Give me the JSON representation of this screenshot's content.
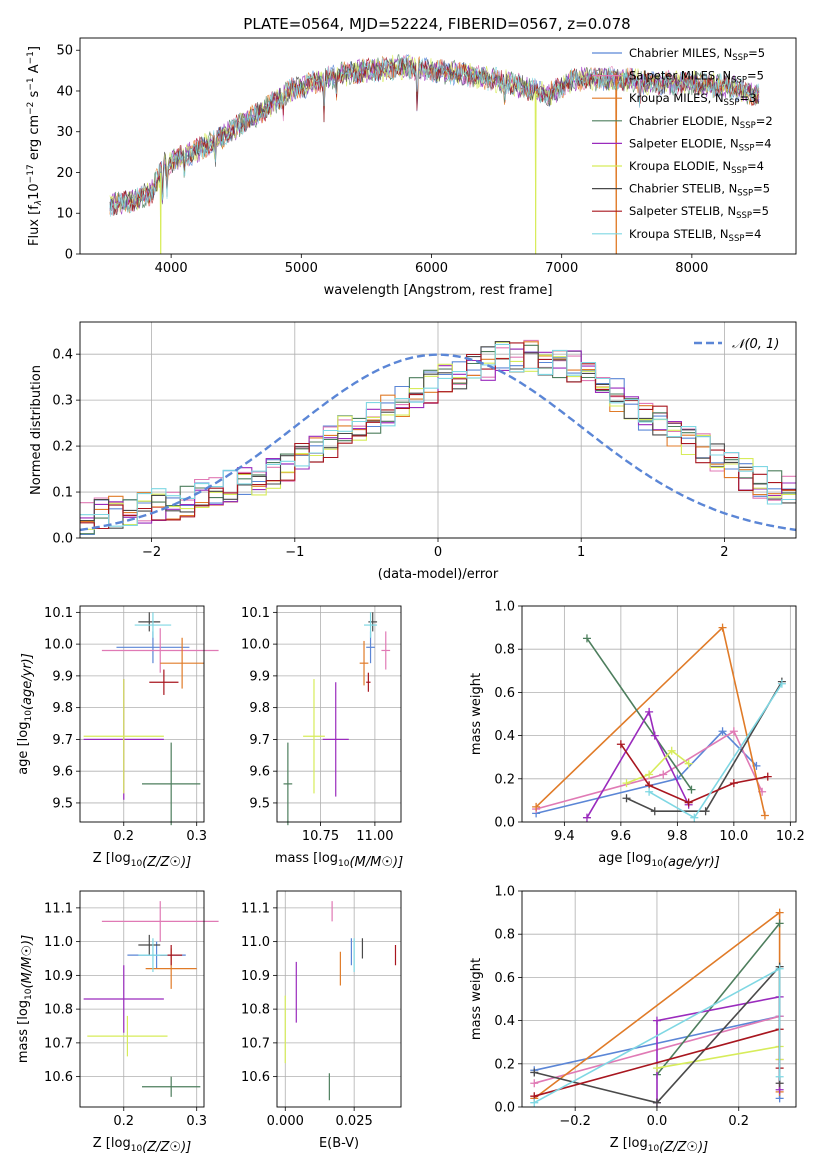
{
  "title": "PLATE=0564, MJD=52224, FIBERID=0567, z=0.078",
  "colors": {
    "chabrier_miles": "#5b86d6",
    "salpeter_miles": "#e07ab5",
    "kroupa_miles": "#e07b28",
    "chabrier_elodie": "#4d7e5d",
    "salpeter_elodie": "#9a2bbd",
    "kroupa_elodie": "#d7ec5a",
    "chabrier_stelib": "#4a4a4a",
    "salpeter_stelib": "#a8161f",
    "kroupa_stelib": "#7fd7e3",
    "normal": "#5b86d6",
    "grid": "#b0b0b0"
  },
  "chart_data": [
    {
      "id": "spectrum",
      "type": "line",
      "xlabel": "wavelength [Angstrom, rest frame]",
      "ylabel_parts": [
        "Flux [f",
        "λ",
        "10",
        "−17",
        " erg cm",
        "−2",
        " s",
        "−1",
        " A",
        "−1",
        "]"
      ],
      "xlim": [
        3300,
        8800
      ],
      "ylim": [
        0,
        53
      ],
      "xticks": [
        4000,
        5000,
        6000,
        7000,
        8000
      ],
      "yticks": [
        0,
        10,
        20,
        30,
        40,
        50
      ],
      "grid": false,
      "legend_position": "top-right",
      "continuum": [
        [
          3530,
          12
        ],
        [
          3700,
          13
        ],
        [
          3850,
          15
        ],
        [
          3950,
          22
        ],
        [
          4100,
          24
        ],
        [
          4300,
          27
        ],
        [
          4500,
          31
        ],
        [
          4700,
          35
        ],
        [
          4900,
          40
        ],
        [
          5100,
          42
        ],
        [
          5300,
          44
        ],
        [
          5500,
          45
        ],
        [
          5800,
          46
        ],
        [
          6000,
          45
        ],
        [
          6300,
          44
        ],
        [
          6600,
          42
        ],
        [
          6900,
          39
        ],
        [
          7100,
          43
        ],
        [
          7400,
          43
        ],
        [
          7700,
          42
        ],
        [
          8000,
          42
        ],
        [
          8300,
          41
        ],
        [
          8500,
          39
        ]
      ],
      "dropouts": [
        {
          "series": "kroupa_elodie",
          "x": 3920,
          "to": 0
        },
        {
          "series": "kroupa_elodie",
          "x": 6800,
          "to": 0
        },
        {
          "series": "kroupa_miles",
          "x": 7420,
          "to": 0
        }
      ],
      "series": [
        {
          "key": "chabrier_miles",
          "label": "Chabrier MILES, N",
          "sub": "SSP",
          "eq": "=5"
        },
        {
          "key": "salpeter_miles",
          "label": "Salpeter MILES, N",
          "sub": "SSP",
          "eq": "=5"
        },
        {
          "key": "kroupa_miles",
          "label": "Kroupa MILES, N",
          "sub": "SSP",
          "eq": "=3"
        },
        {
          "key": "chabrier_elodie",
          "label": "Chabrier ELODIE, N",
          "sub": "SSP",
          "eq": "=2"
        },
        {
          "key": "salpeter_elodie",
          "label": "Salpeter ELODIE, N",
          "sub": "SSP",
          "eq": "=4"
        },
        {
          "key": "kroupa_elodie",
          "label": "Kroupa ELODIE, N",
          "sub": "SSP",
          "eq": "=4"
        },
        {
          "key": "chabrier_stelib",
          "label": "Chabrier STELIB, N",
          "sub": "SSP",
          "eq": "=5"
        },
        {
          "key": "salpeter_stelib",
          "label": "Salpeter STELIB, N",
          "sub": "SSP",
          "eq": "=5"
        },
        {
          "key": "kroupa_stelib",
          "label": "Kroupa STELIB, N",
          "sub": "SSP",
          "eq": "=4"
        }
      ]
    },
    {
      "id": "residuals",
      "type": "line",
      "xlabel": "(data-model)/error",
      "ylabel": "Normed distribution",
      "xlim": [
        -2.5,
        2.5
      ],
      "ylim": [
        0,
        0.47
      ],
      "xticks": [
        -2,
        -1,
        0,
        1,
        2
      ],
      "xticklabels": [
        "−2",
        "−1",
        "0",
        "1",
        "2"
      ],
      "yticks": [
        0.0,
        0.1,
        0.2,
        0.3,
        0.4
      ],
      "yticklabels": [
        "0.0",
        "0.1",
        "0.2",
        "0.3",
        "0.4"
      ],
      "grid": true,
      "legend_position": "top-right",
      "legend_label": "𝒩(0, 1)",
      "bin_width": 0.1,
      "bin_start": -2.5,
      "base_profile": [
        0.045,
        0.05,
        0.055,
        0.06,
        0.065,
        0.07,
        0.075,
        0.08,
        0.09,
        0.1,
        0.11,
        0.12,
        0.13,
        0.14,
        0.16,
        0.17,
        0.19,
        0.21,
        0.23,
        0.25,
        0.26,
        0.28,
        0.3,
        0.32,
        0.33,
        0.35,
        0.36,
        0.37,
        0.38,
        0.39,
        0.39,
        0.4,
        0.39,
        0.38,
        0.37,
        0.35,
        0.33,
        0.31,
        0.29,
        0.27,
        0.25,
        0.23,
        0.21,
        0.19,
        0.17,
        0.15,
        0.14,
        0.12,
        0.11,
        0.1
      ],
      "series": [
        "chabrier_miles",
        "salpeter_miles",
        "kroupa_miles",
        "chabrier_elodie",
        "salpeter_elodie",
        "kroupa_elodie",
        "chabrier_stelib",
        "salpeter_stelib",
        "kroupa_stelib"
      ]
    },
    {
      "id": "age_vs_Z",
      "type": "scatter",
      "xlabel": "Z [log10(Z/Z☉)]",
      "ylabel": "age  [log10(age/yr)]",
      "xlim": [
        0.14,
        0.31
      ],
      "ylim": [
        9.44,
        10.12
      ],
      "xticks": [
        0.2,
        0.3
      ],
      "xticklabels": [
        "0.2",
        "0.3"
      ],
      "yticks": [
        9.5,
        9.6,
        9.7,
        9.8,
        9.9,
        10.0,
        10.1
      ],
      "yticklabels": [
        "9.5",
        "9.6",
        "9.7",
        "9.8",
        "9.9",
        "10.0",
        "10.1"
      ],
      "grid": true,
      "points": [
        {
          "series": "chabrier_miles",
          "x": 0.24,
          "y": 9.99,
          "dx": 0.05,
          "dy": 0.05
        },
        {
          "series": "salpeter_miles",
          "x": 0.25,
          "y": 9.98,
          "dx": 0.08,
          "dy": 0.07
        },
        {
          "series": "kroupa_miles",
          "x": 0.28,
          "y": 9.94,
          "dx": 0.03,
          "dy": 0.08
        },
        {
          "series": "chabrier_elodie",
          "x": 0.265,
          "y": 9.56,
          "dx": 0.04,
          "dy": 0.13
        },
        {
          "series": "salpeter_elodie",
          "x": 0.2,
          "y": 9.7,
          "dx": 0.055,
          "dy": 0.19
        },
        {
          "series": "kroupa_elodie",
          "x": 0.2,
          "y": 9.71,
          "dx": 0.055,
          "dy": 0.18
        },
        {
          "series": "chabrier_stelib",
          "x": 0.235,
          "y": 10.07,
          "dx": 0.015,
          "dy": 0.03
        },
        {
          "series": "salpeter_stelib",
          "x": 0.255,
          "y": 9.88,
          "dx": 0.02,
          "dy": 0.04
        },
        {
          "series": "kroupa_stelib",
          "x": 0.24,
          "y": 10.06,
          "dx": 0.025,
          "dy": 0.04
        }
      ]
    },
    {
      "id": "age_vs_mass",
      "type": "scatter",
      "xlabel": "mass [log10(M/M☉)]",
      "ylabel": "",
      "xlim": [
        10.55,
        11.12
      ],
      "ylim": [
        9.44,
        10.12
      ],
      "xticks": [
        10.75,
        11.0
      ],
      "xticklabels": [
        "10.75",
        "11.00"
      ],
      "yticks": [
        9.5,
        9.6,
        9.7,
        9.8,
        9.9,
        10.0,
        10.1
      ],
      "yticklabels": [
        "9.5",
        "9.6",
        "9.7",
        "9.8",
        "9.9",
        "10.0",
        "10.1"
      ],
      "grid": true,
      "points": [
        {
          "series": "chabrier_miles",
          "x": 10.98,
          "y": 9.99,
          "dx": 0.02,
          "dy": 0.05
        },
        {
          "series": "salpeter_miles",
          "x": 11.05,
          "y": 9.98,
          "dx": 0.02,
          "dy": 0.06
        },
        {
          "series": "kroupa_miles",
          "x": 10.95,
          "y": 9.94,
          "dx": 0.02,
          "dy": 0.07
        },
        {
          "series": "chabrier_elodie",
          "x": 10.6,
          "y": 9.56,
          "dx": 0.02,
          "dy": 0.13
        },
        {
          "series": "salpeter_elodie",
          "x": 10.82,
          "y": 9.7,
          "dx": 0.06,
          "dy": 0.18
        },
        {
          "series": "kroupa_elodie",
          "x": 10.72,
          "y": 9.71,
          "dx": 0.05,
          "dy": 0.18
        },
        {
          "series": "chabrier_stelib",
          "x": 10.99,
          "y": 10.07,
          "dx": 0.02,
          "dy": 0.03
        },
        {
          "series": "salpeter_stelib",
          "x": 10.97,
          "y": 9.88,
          "dx": 0.01,
          "dy": 0.03
        },
        {
          "series": "kroupa_stelib",
          "x": 10.98,
          "y": 10.06,
          "dx": 0.03,
          "dy": 0.04
        }
      ]
    },
    {
      "id": "massweight_vs_age",
      "type": "line",
      "xlabel": "age  [log10(age/yr)]",
      "ylabel": "mass weight",
      "xlim": [
        9.25,
        10.22
      ],
      "ylim": [
        0.0,
        1.0
      ],
      "xticks": [
        9.4,
        9.6,
        9.8,
        10.0,
        10.2
      ],
      "xticklabels": [
        "9.4",
        "9.6",
        "9.8",
        "10.0",
        "10.2"
      ],
      "yticks": [
        0.0,
        0.2,
        0.4,
        0.6,
        0.8,
        1.0
      ],
      "yticklabels": [
        "0.0",
        "0.2",
        "0.4",
        "0.6",
        "0.8",
        "1.0"
      ],
      "grid": true,
      "series": [
        {
          "key": "chabrier_miles",
          "x": [
            9.3,
            9.8,
            9.96,
            10.08
          ],
          "y": [
            0.04,
            0.2,
            0.42,
            0.26
          ]
        },
        {
          "key": "salpeter_miles",
          "x": [
            9.3,
            9.75,
            10.0,
            10.1
          ],
          "y": [
            0.06,
            0.22,
            0.42,
            0.14
          ]
        },
        {
          "key": "kroupa_miles",
          "x": [
            9.3,
            9.96,
            10.11
          ],
          "y": [
            0.07,
            0.9,
            0.03
          ]
        },
        {
          "key": "chabrier_elodie",
          "x": [
            9.48,
            9.85
          ],
          "y": [
            0.85,
            0.15
          ]
        },
        {
          "key": "salpeter_elodie",
          "x": [
            9.48,
            9.7,
            9.72,
            9.84
          ],
          "y": [
            0.02,
            0.51,
            0.4,
            0.08
          ]
        },
        {
          "key": "kroupa_elodie",
          "x": [
            9.62,
            9.7,
            9.78,
            9.84
          ],
          "y": [
            0.18,
            0.22,
            0.33,
            0.27
          ]
        },
        {
          "key": "chabrier_stelib",
          "x": [
            9.62,
            9.72,
            9.9,
            10.17
          ],
          "y": [
            0.11,
            0.05,
            0.05,
            0.65
          ]
        },
        {
          "key": "salpeter_stelib",
          "x": [
            9.6,
            9.7,
            9.84,
            10.0,
            10.12
          ],
          "y": [
            0.36,
            0.17,
            0.09,
            0.18,
            0.21
          ]
        },
        {
          "key": "kroupa_stelib",
          "x": [
            9.7,
            9.86,
            10.17
          ],
          "y": [
            0.14,
            0.02,
            0.64
          ]
        }
      ]
    },
    {
      "id": "mass_vs_Z",
      "type": "scatter",
      "xlabel": "Z [log10(Z/Z☉)]",
      "ylabel": "mass [log10(M/M☉)]",
      "xlim": [
        0.14,
        0.31
      ],
      "ylim": [
        10.51,
        11.15
      ],
      "xticks": [
        0.2,
        0.3
      ],
      "xticklabels": [
        "0.2",
        "0.3"
      ],
      "yticks": [
        10.6,
        10.7,
        10.8,
        10.9,
        11.0,
        11.1
      ],
      "yticklabels": [
        "10.6",
        "10.7",
        "10.8",
        "10.9",
        "11.0",
        "11.1"
      ],
      "grid": true,
      "points": [
        {
          "series": "chabrier_miles",
          "x": 0.245,
          "y": 10.96,
          "dx": 0.04,
          "dy": 0.04
        },
        {
          "series": "salpeter_miles",
          "x": 0.25,
          "y": 11.06,
          "dx": 0.08,
          "dy": 0.06
        },
        {
          "series": "kroupa_miles",
          "x": 0.265,
          "y": 10.92,
          "dx": 0.035,
          "dy": 0.06
        },
        {
          "series": "chabrier_elodie",
          "x": 0.265,
          "y": 10.57,
          "dx": 0.04,
          "dy": 0.03
        },
        {
          "series": "salpeter_elodie",
          "x": 0.2,
          "y": 10.83,
          "dx": 0.055,
          "dy": 0.1
        },
        {
          "series": "kroupa_elodie",
          "x": 0.205,
          "y": 10.72,
          "dx": 0.055,
          "dy": 0.06
        },
        {
          "series": "chabrier_stelib",
          "x": 0.235,
          "y": 10.99,
          "dx": 0.015,
          "dy": 0.03
        },
        {
          "series": "salpeter_stelib",
          "x": 0.265,
          "y": 10.96,
          "dx": 0.015,
          "dy": 0.03
        },
        {
          "series": "kroupa_stelib",
          "x": 0.24,
          "y": 10.96,
          "dx": 0.02,
          "dy": 0.05
        }
      ]
    },
    {
      "id": "mass_vs_ebv",
      "type": "scatter",
      "xlabel": "E(B-V)",
      "ylabel": "",
      "xlim": [
        -0.003,
        0.042
      ],
      "ylim": [
        10.51,
        11.15
      ],
      "xticks": [
        0.0,
        0.025
      ],
      "xticklabels": [
        "0.000",
        "0.025"
      ],
      "yticks": [
        10.6,
        10.7,
        10.8,
        10.9,
        11.0,
        11.1
      ],
      "yticklabels": [
        "10.6",
        "10.7",
        "10.8",
        "10.9",
        "11.0",
        "11.1"
      ],
      "grid": true,
      "points": [
        {
          "series": "chabrier_miles",
          "x": 0.024,
          "y": 10.97,
          "dx": 0,
          "dy": 0.04
        },
        {
          "series": "salpeter_miles",
          "x": 0.017,
          "y": 11.09,
          "dx": 0,
          "dy": 0.03
        },
        {
          "series": "kroupa_miles",
          "x": 0.02,
          "y": 10.92,
          "dx": 0,
          "dy": 0.05
        },
        {
          "series": "chabrier_elodie",
          "x": 0.016,
          "y": 10.57,
          "dx": 0,
          "dy": 0.04
        },
        {
          "series": "salpeter_elodie",
          "x": 0.004,
          "y": 10.85,
          "dx": 0,
          "dy": 0.09
        },
        {
          "series": "kroupa_elodie",
          "x": 0.0,
          "y": 10.74,
          "dx": 0,
          "dy": 0.1
        },
        {
          "series": "chabrier_stelib",
          "x": 0.028,
          "y": 10.98,
          "dx": 0,
          "dy": 0.03
        },
        {
          "series": "salpeter_stelib",
          "x": 0.04,
          "y": 10.96,
          "dx": 0,
          "dy": 0.03
        },
        {
          "series": "kroupa_stelib",
          "x": 0.025,
          "y": 10.96,
          "dx": 0,
          "dy": 0.05
        }
      ]
    },
    {
      "id": "massweight_vs_Z",
      "type": "line",
      "xlabel": "Z [log10(Z/Z☉)]",
      "ylabel": "mass weight",
      "xlim": [
        -0.33,
        0.34
      ],
      "ylim": [
        0.0,
        1.0
      ],
      "xticks": [
        -0.2,
        0.0,
        0.2
      ],
      "xticklabels": [
        "−0.2",
        "0.0",
        "0.2"
      ],
      "yticks": [
        0.0,
        0.2,
        0.4,
        0.6,
        0.8,
        1.0
      ],
      "yticklabels": [
        "0.0",
        "0.2",
        "0.4",
        "0.6",
        "0.8",
        "1.0"
      ],
      "grid": true,
      "series": [
        {
          "key": "chabrier_miles",
          "x": [
            -0.3,
            0.3,
            0.3
          ],
          "y": [
            0.17,
            0.42,
            0.04
          ]
        },
        {
          "key": "salpeter_miles",
          "x": [
            -0.3,
            0.3,
            0.3
          ],
          "y": [
            0.11,
            0.42,
            0.22
          ]
        },
        {
          "key": "kroupa_miles",
          "x": [
            -0.3,
            0.3,
            0.3
          ],
          "y": [
            0.04,
            0.9,
            0.07
          ]
        },
        {
          "key": "chabrier_elodie",
          "x": [
            0.0,
            0.3
          ],
          "y": [
            0.15,
            0.85
          ]
        },
        {
          "key": "salpeter_elodie",
          "x": [
            0.0,
            0.0,
            0.3,
            0.3
          ],
          "y": [
            0.02,
            0.4,
            0.51,
            0.08
          ]
        },
        {
          "key": "kroupa_elodie",
          "x": [
            0.0,
            0.3,
            0.3
          ],
          "y": [
            0.18,
            0.28,
            0.22
          ]
        },
        {
          "key": "chabrier_stelib",
          "x": [
            -0.3,
            0.0,
            0.3,
            0.3
          ],
          "y": [
            0.16,
            0.02,
            0.65,
            0.11
          ]
        },
        {
          "key": "salpeter_stelib",
          "x": [
            -0.3,
            0.3,
            0.3
          ],
          "y": [
            0.05,
            0.36,
            0.18
          ]
        },
        {
          "key": "kroupa_stelib",
          "x": [
            -0.3,
            0.3,
            0.3
          ],
          "y": [
            0.02,
            0.64,
            0.14
          ]
        }
      ]
    }
  ]
}
